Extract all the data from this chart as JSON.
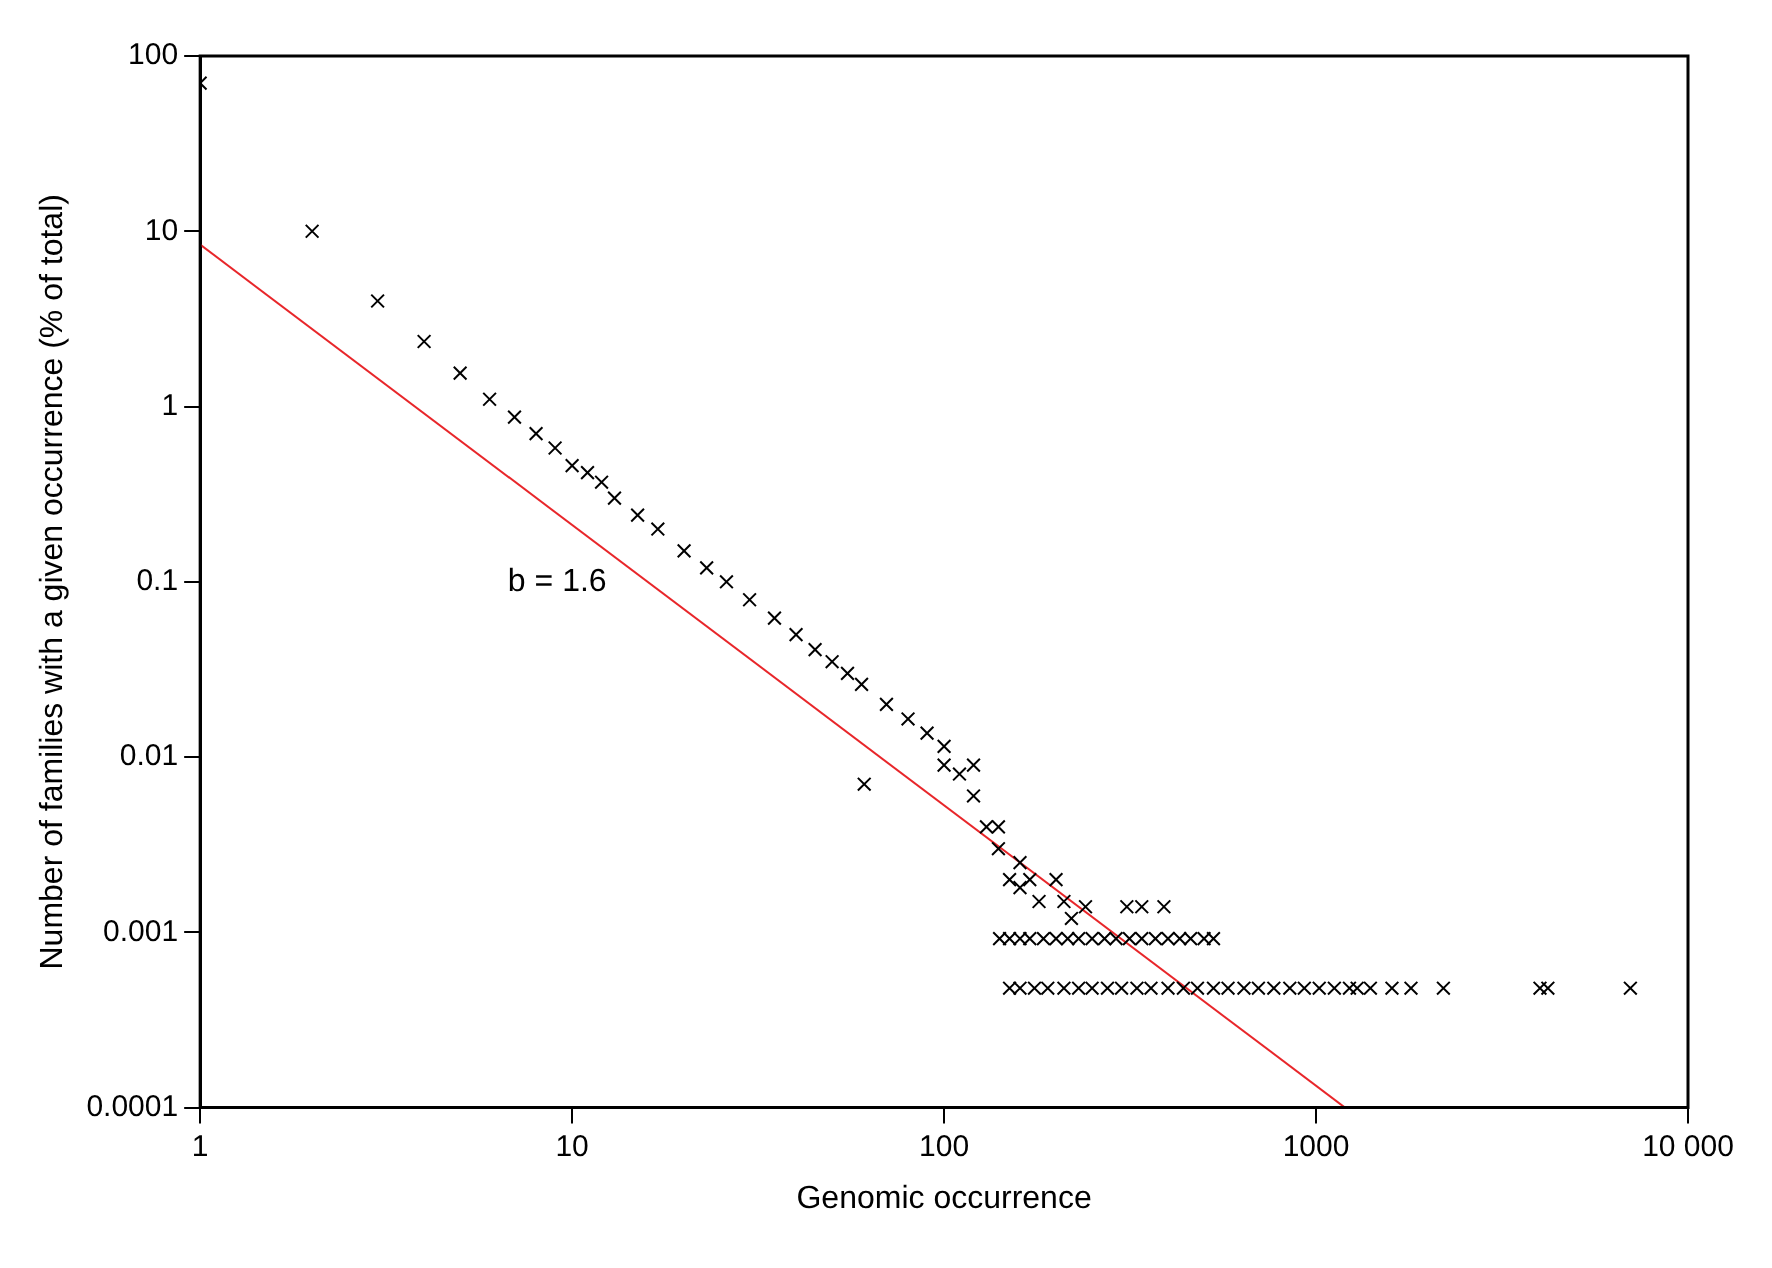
{
  "chart_data": {
    "type": "scatter",
    "xlabel": "Genomic occurrence",
    "ylabel": "Number of families with a given occurrence (% of total)",
    "log": "xy",
    "grid": false,
    "legend": false,
    "xlim": [
      1,
      10000
    ],
    "xticks": [
      1,
      10,
      100,
      1000,
      {
        "value": 10000,
        "label": "10 000"
      }
    ],
    "ylim": [
      0.0001,
      100
    ],
    "yticks": [
      0.0001,
      0.001,
      0.01,
      0.1,
      1,
      10,
      100
    ],
    "annotations": [
      "b = 1.6"
    ],
    "series": [
      {
        "marker": "cross",
        "color": "#000000",
        "x": [
          1,
          2,
          3,
          4,
          5,
          6,
          7,
          8,
          9,
          10,
          11,
          12,
          13,
          15,
          17,
          20,
          23,
          26,
          30,
          35,
          40,
          45,
          50,
          55,
          60,
          61,
          70,
          80,
          90,
          100,
          100,
          110,
          120,
          120,
          130,
          140,
          140,
          150,
          160,
          160,
          170,
          180,
          200,
          210,
          220,
          240,
          310,
          340,
          390,
          141,
          150,
          160,
          170,
          185,
          200,
          215,
          230,
          250,
          270,
          290,
          315,
          340,
          370,
          400,
          430,
          460,
          500,
          530,
          150,
          160,
          175,
          190,
          210,
          230,
          250,
          275,
          300,
          330,
          360,
          400,
          440,
          480,
          530,
          580,
          640,
          700,
          770,
          850,
          930,
          1020,
          1120,
          1230,
          1290,
          1400,
          1600,
          1800,
          2200,
          4000,
          4200,
          7000
        ],
        "values": [
          70,
          10,
          4,
          2.35,
          1.55,
          1.1,
          0.87,
          0.7,
          0.58,
          0.46,
          0.42,
          0.37,
          0.3,
          0.24,
          0.2,
          0.15,
          0.12,
          0.1,
          0.079,
          0.062,
          0.05,
          0.041,
          0.035,
          0.03,
          0.026,
          0.007,
          0.02,
          0.0165,
          0.0137,
          0.0115,
          0.009,
          0.008,
          0.009,
          0.006,
          0.004,
          0.003,
          0.004,
          0.002,
          0.0025,
          0.0018,
          0.002,
          0.0015,
          0.002,
          0.0015,
          0.0012,
          0.0014,
          0.0014,
          0.0014,
          0.0014,
          0.00092,
          0.00092,
          0.00092,
          0.00092,
          0.00092,
          0.00092,
          0.00092,
          0.00092,
          0.00092,
          0.00092,
          0.00092,
          0.00092,
          0.00092,
          0.00092,
          0.00092,
          0.00092,
          0.00092,
          0.00092,
          0.00092,
          0.00048,
          0.00048,
          0.00048,
          0.00048,
          0.00048,
          0.00048,
          0.00048,
          0.00048,
          0.00048,
          0.00048,
          0.00048,
          0.00048,
          0.00048,
          0.00048,
          0.00048,
          0.00048,
          0.00048,
          0.00048,
          0.00048,
          0.00048,
          0.00048,
          0.00048,
          0.00048,
          0.00048,
          0.00048,
          0.00048,
          0.00048,
          0.00048,
          0.00048,
          0.00048,
          0.00048,
          0.00048
        ]
      },
      {
        "type": "line",
        "marker": "none",
        "color": "#e8262a",
        "x": [
          1,
          1196
        ],
        "values": [
          8.4,
          0.0001
        ]
      }
    ]
  }
}
